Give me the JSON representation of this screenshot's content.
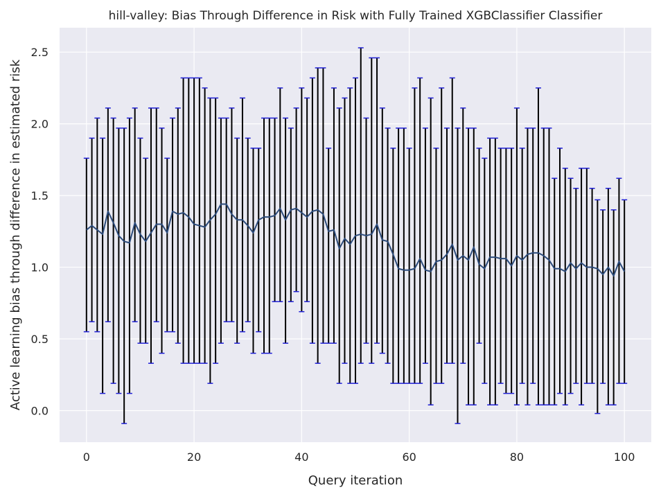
{
  "chart_data": {
    "type": "line",
    "title": "hill-valley: Bias Through Difference in Risk with Fully Trained XGBClassifier Classifier",
    "xlabel": "Query iteration",
    "ylabel": "Active learning bias through difference in estimated risk",
    "xlim": [
      -5,
      105
    ],
    "ylim": [
      -0.22,
      2.67
    ],
    "xticks": [
      0,
      20,
      40,
      60,
      80,
      100
    ],
    "yticks": [
      0.0,
      0.5,
      1.0,
      1.5,
      2.0,
      2.5
    ],
    "xtick_labels": [
      "0",
      "20",
      "40",
      "60",
      "80",
      "100"
    ],
    "ytick_labels": [
      "0.0",
      "0.5",
      "1.0",
      "1.5",
      "2.0",
      "2.5"
    ],
    "grid": true,
    "colors": {
      "background": "#eaeaf2",
      "grid": "#ffffff",
      "line": "#2b4a7a",
      "errorbar": "#000000",
      "cap": "#1f1fd6"
    },
    "series": [
      {
        "x": [
          0,
          1,
          2,
          3,
          4,
          5,
          6,
          7,
          8,
          9,
          10,
          11,
          12,
          13,
          14,
          15,
          16,
          17,
          18,
          19,
          20,
          21,
          22,
          23,
          24,
          25,
          26,
          27,
          28,
          29,
          30,
          31,
          32,
          33,
          34,
          35,
          36,
          37,
          38,
          39,
          40,
          41,
          42,
          43,
          44,
          45,
          46,
          47,
          48,
          49,
          50,
          51,
          52,
          53,
          54,
          55,
          56,
          57,
          58,
          59,
          60,
          61,
          62,
          63,
          64,
          65,
          66,
          67,
          68,
          69,
          70,
          71,
          72,
          73,
          74,
          75,
          76,
          77,
          78,
          79,
          80,
          81,
          82,
          83,
          84,
          85,
          86,
          87,
          88,
          89,
          90,
          91,
          92,
          93,
          94,
          95,
          96,
          97,
          98,
          99,
          100
        ],
        "y": [
          1.26,
          1.29,
          1.26,
          1.23,
          1.39,
          1.31,
          1.22,
          1.18,
          1.17,
          1.31,
          1.23,
          1.18,
          1.24,
          1.3,
          1.3,
          1.24,
          1.39,
          1.37,
          1.38,
          1.35,
          1.3,
          1.29,
          1.28,
          1.33,
          1.37,
          1.44,
          1.44,
          1.37,
          1.33,
          1.33,
          1.29,
          1.24,
          1.33,
          1.35,
          1.35,
          1.36,
          1.41,
          1.33,
          1.4,
          1.41,
          1.38,
          1.35,
          1.39,
          1.4,
          1.37,
          1.25,
          1.26,
          1.13,
          1.2,
          1.16,
          1.22,
          1.23,
          1.22,
          1.23,
          1.3,
          1.19,
          1.18,
          1.09,
          0.99,
          0.98,
          0.98,
          0.99,
          1.06,
          0.98,
          0.97,
          1.04,
          1.05,
          1.09,
          1.16,
          1.05,
          1.08,
          1.05,
          1.14,
          1.02,
          0.99,
          1.07,
          1.07,
          1.06,
          1.06,
          1.01,
          1.08,
          1.05,
          1.09,
          1.1,
          1.1,
          1.08,
          1.05,
          0.99,
          0.99,
          0.97,
          1.03,
          0.99,
          1.03,
          1.0,
          1.0,
          0.99,
          0.95,
          1.0,
          0.94,
          1.04,
          0.97
        ],
        "lower": [
          0.55,
          0.62,
          0.55,
          0.12,
          0.62,
          0.19,
          0.12,
          -0.09,
          0.12,
          0.62,
          0.47,
          0.47,
          0.33,
          0.62,
          0.4,
          0.55,
          0.55,
          0.47,
          0.33,
          0.33,
          0.33,
          0.33,
          0.33,
          0.19,
          0.33,
          0.47,
          0.62,
          0.62,
          0.47,
          0.55,
          0.62,
          0.4,
          0.55,
          0.4,
          0.4,
          0.76,
          0.76,
          0.47,
          0.76,
          0.83,
          0.69,
          0.76,
          0.47,
          0.33,
          0.47,
          0.47,
          0.47,
          0.19,
          0.33,
          0.19,
          0.19,
          0.33,
          0.47,
          0.33,
          0.47,
          0.4,
          0.33,
          0.19,
          0.19,
          0.19,
          0.19,
          0.19,
          0.19,
          0.33,
          0.04,
          0.19,
          0.19,
          0.33,
          0.33,
          -0.09,
          0.33,
          0.04,
          0.04,
          0.47,
          0.19,
          0.04,
          0.04,
          0.19,
          0.12,
          0.12,
          0.04,
          0.19,
          0.04,
          0.19,
          0.04,
          0.04,
          0.04,
          0.04,
          0.12,
          0.04,
          0.12,
          0.19,
          0.04,
          0.19,
          0.19,
          -0.02,
          0.19,
          0.04,
          0.04,
          0.19,
          0.19
        ],
        "upper": [
          1.76,
          1.9,
          2.04,
          1.9,
          2.11,
          2.04,
          1.97,
          1.97,
          2.04,
          2.11,
          1.9,
          1.76,
          2.11,
          2.11,
          1.97,
          1.76,
          2.04,
          2.11,
          2.32,
          2.32,
          2.32,
          2.32,
          2.25,
          2.18,
          2.18,
          2.04,
          2.04,
          2.11,
          1.9,
          2.18,
          1.9,
          1.83,
          1.83,
          2.04,
          2.04,
          2.04,
          2.25,
          2.04,
          1.97,
          2.11,
          2.25,
          2.18,
          2.32,
          2.39,
          2.39,
          1.83,
          2.25,
          2.11,
          2.18,
          2.25,
          2.32,
          2.53,
          2.04,
          2.46,
          2.46,
          2.11,
          1.97,
          1.83,
          1.97,
          1.97,
          1.83,
          2.25,
          2.32,
          1.97,
          2.18,
          1.83,
          2.25,
          1.97,
          2.32,
          1.97,
          2.11,
          1.97,
          1.97,
          1.83,
          1.76,
          1.9,
          1.9,
          1.83,
          1.83,
          1.83,
          2.11,
          1.83,
          1.97,
          1.97,
          2.25,
          1.97,
          1.97,
          1.62,
          1.83,
          1.69,
          1.62,
          1.55,
          1.69,
          1.69,
          1.55,
          1.47,
          1.4,
          1.55,
          1.4,
          1.62,
          1.47
        ]
      }
    ]
  }
}
